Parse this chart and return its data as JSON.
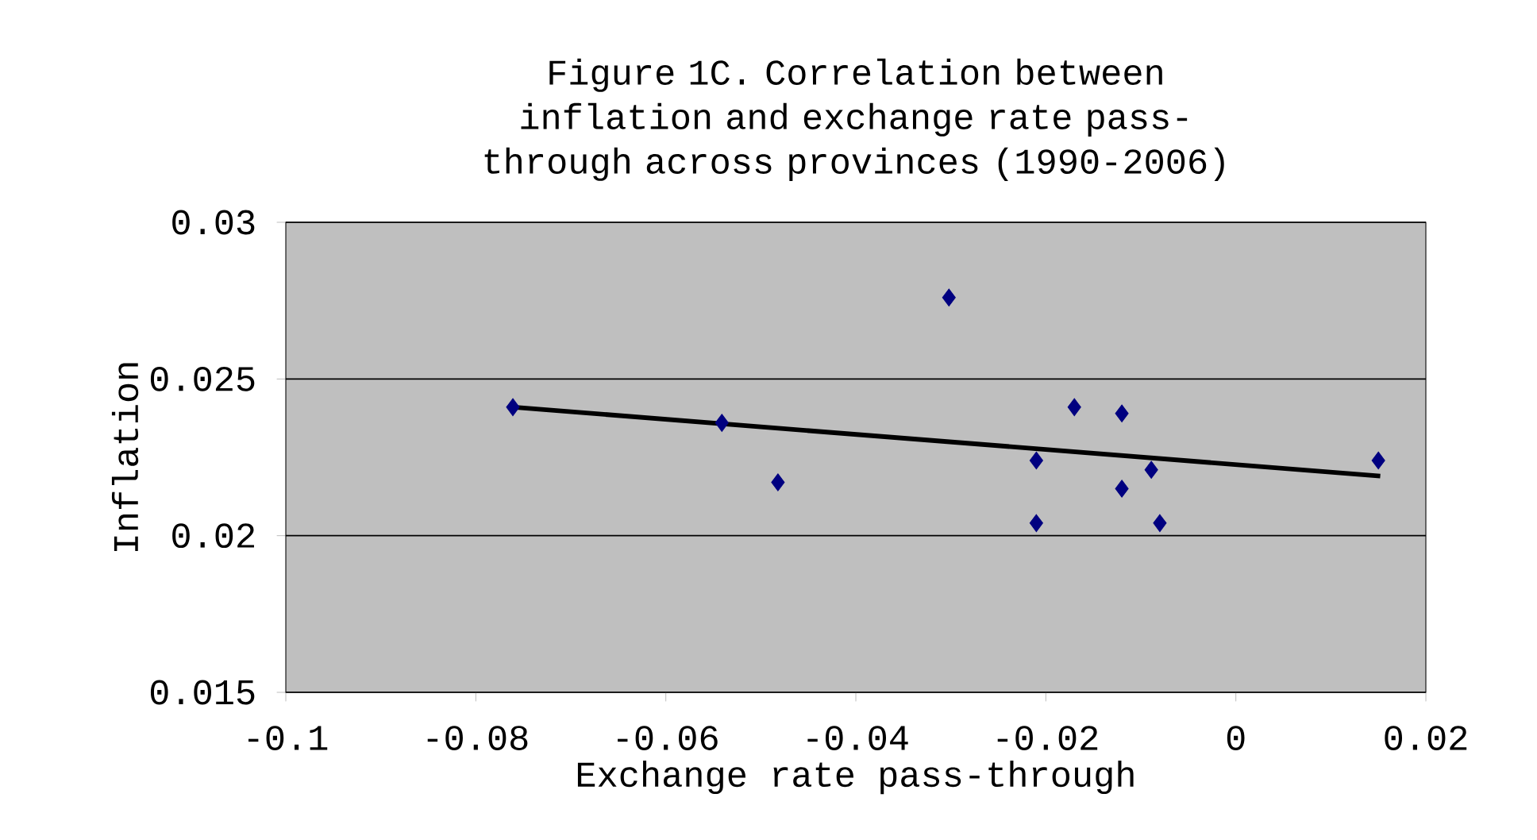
{
  "chart_data": {
    "type": "scatter",
    "title": "Figure 1C. Correlation between inflation and exchange rate pass-through across provinces (1990-2006)",
    "xlabel": "Exchange rate pass-through",
    "ylabel": "Inflation",
    "xlim": [
      -0.1,
      0.02
    ],
    "xticks": [
      -0.1,
      -0.08,
      -0.06,
      -0.04,
      -0.02,
      0,
      0.02
    ],
    "ylim": [
      0.015,
      0.03
    ],
    "yticks": [
      0.015,
      0.02,
      0.025,
      0.03
    ],
    "grid": "y",
    "series": [
      {
        "color": "#000080",
        "marker": "diamond",
        "x": [
          -0.0761,
          -0.0541,
          -0.0482,
          -0.0302,
          -0.021,
          -0.021,
          -0.017,
          -0.012,
          -0.012,
          -0.0089,
          -0.008,
          0.015
        ],
        "values": [
          0.0241,
          0.0236,
          0.0217,
          0.0276,
          0.0224,
          0.0204,
          0.0241,
          0.0239,
          0.0215,
          0.0221,
          0.0204,
          0.0224
        ]
      },
      {
        "type": "line",
        "color": "#000000",
        "marker": "none",
        "x": [
          -0.076,
          0.0152
        ],
        "values": [
          0.0241,
          0.0219
        ]
      }
    ]
  }
}
